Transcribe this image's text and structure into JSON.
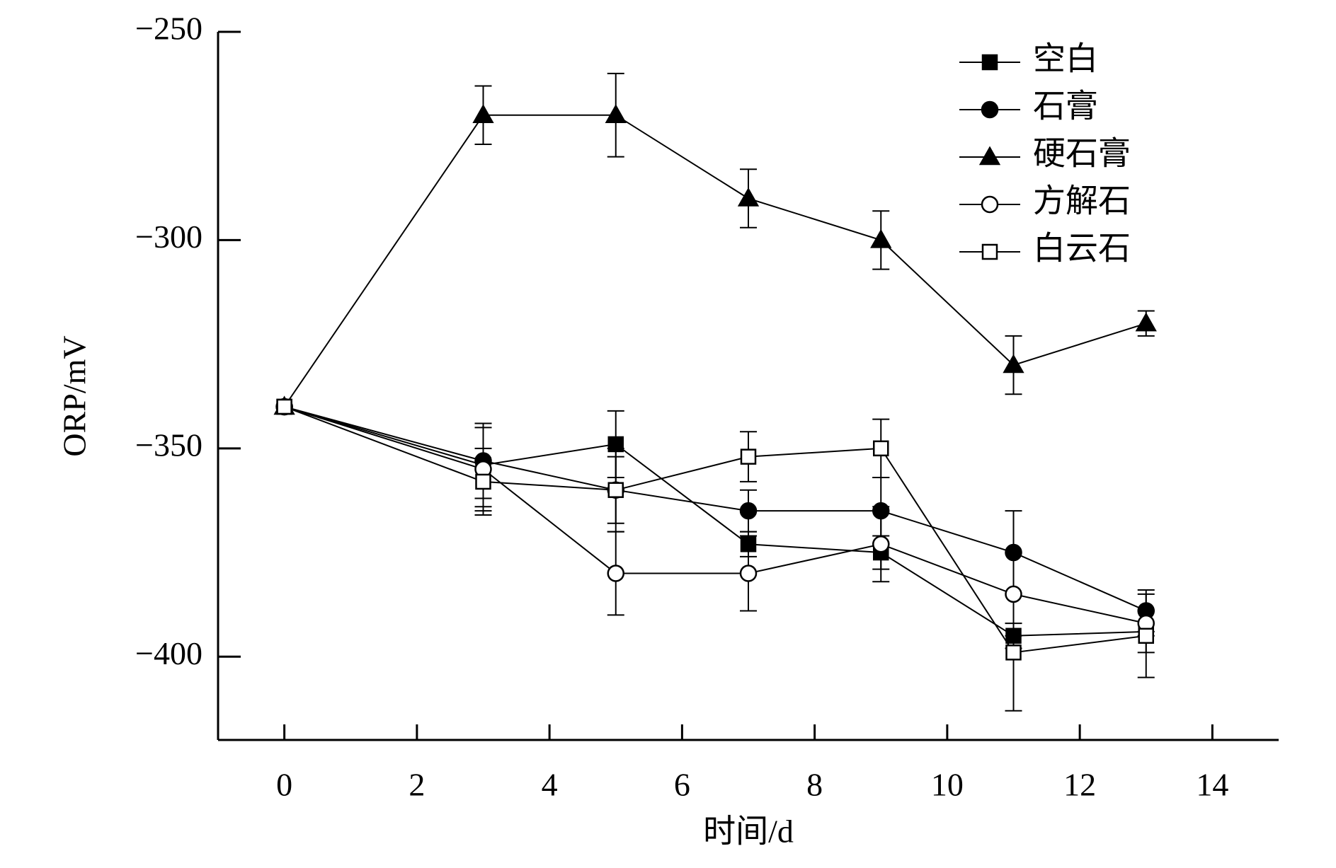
{
  "chart_data": {
    "type": "line",
    "x_label": "时间/d",
    "y_label": "ORP/mV",
    "x": [
      0,
      3,
      5,
      7,
      9,
      11,
      13
    ],
    "series": [
      {
        "name": "空白",
        "color": "#000000",
        "marker": "square",
        "filled": true,
        "values": [
          -340,
          -354,
          -349,
          -373,
          -375,
          -395,
          -394
        ],
        "errors": [
          null,
          10,
          8,
          3,
          4,
          3,
          5
        ]
      },
      {
        "name": "石膏",
        "color": "#000000",
        "marker": "circle",
        "filled": true,
        "values": [
          -340,
          -353,
          -360,
          -365,
          -365,
          -375,
          -389
        ],
        "errors": [
          null,
          9,
          8,
          5,
          8,
          10,
          5
        ]
      },
      {
        "name": "硬石膏",
        "color": "#000000",
        "marker": "triangle",
        "filled": true,
        "values": [
          -340,
          -270,
          -270,
          -290,
          -300,
          -330,
          -320
        ],
        "errors": [
          null,
          7,
          10,
          7,
          7,
          7,
          3
        ]
      },
      {
        "name": "方解石",
        "color": "#000000",
        "marker": "circle",
        "filled": false,
        "values": [
          -340,
          -355,
          -380,
          -380,
          -373,
          -385,
          -392
        ],
        "errors": [
          null,
          10,
          10,
          9,
          9,
          10,
          3
        ]
      },
      {
        "name": "白云石",
        "color": "#000000",
        "marker": "square",
        "filled": false,
        "values": [
          -340,
          -358,
          -360,
          -352,
          -350,
          -399,
          -395
        ],
        "errors": [
          null,
          8,
          10,
          6,
          7,
          14,
          10
        ]
      }
    ],
    "xlim": [
      -1,
      15
    ],
    "ylim": [
      -420,
      -250
    ],
    "xticks": [
      0,
      2,
      4,
      6,
      8,
      10,
      12,
      14
    ],
    "yticks": [
      {
        "value": -250,
        "label": "−250"
      },
      {
        "value": -300,
        "label": "−300"
      },
      {
        "value": -350,
        "label": "−350"
      },
      {
        "value": -400,
        "label": "−400"
      }
    ],
    "legend": "upper right"
  }
}
